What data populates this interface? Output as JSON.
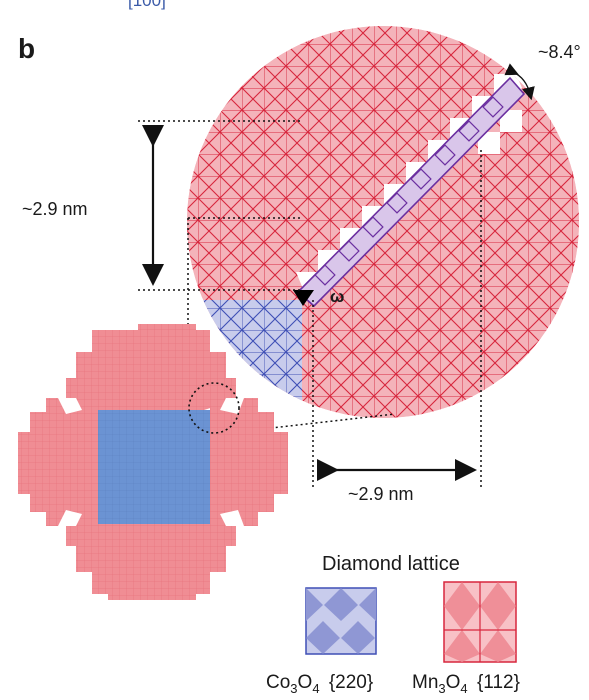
{
  "top_text": "[100]",
  "panel_label": "b",
  "angle_label": "~8.4°",
  "omega_label": "ω",
  "vertical_dim_label": "~2.9 nm",
  "horizontal_dim_label": "~2.9 nm",
  "legend": {
    "title": "Diamond lattice",
    "items": [
      {
        "formula": "Co3O4",
        "plane": "{220}",
        "color": "#3f4fb5"
      },
      {
        "formula": "Mn3O4",
        "plane": "{112}",
        "color": "#d7263d"
      }
    ]
  },
  "colors": {
    "pink_fill": "#f4b3ba",
    "red_line": "#d7263d",
    "blue_fill": "#c8ccec",
    "blue_line": "#3f4fb5",
    "purple_fill": "#d9c6ea",
    "purple_line": "#6b2fa0",
    "crystal_pink": "#f08d94",
    "crystal_blue": "#6b93d3"
  }
}
